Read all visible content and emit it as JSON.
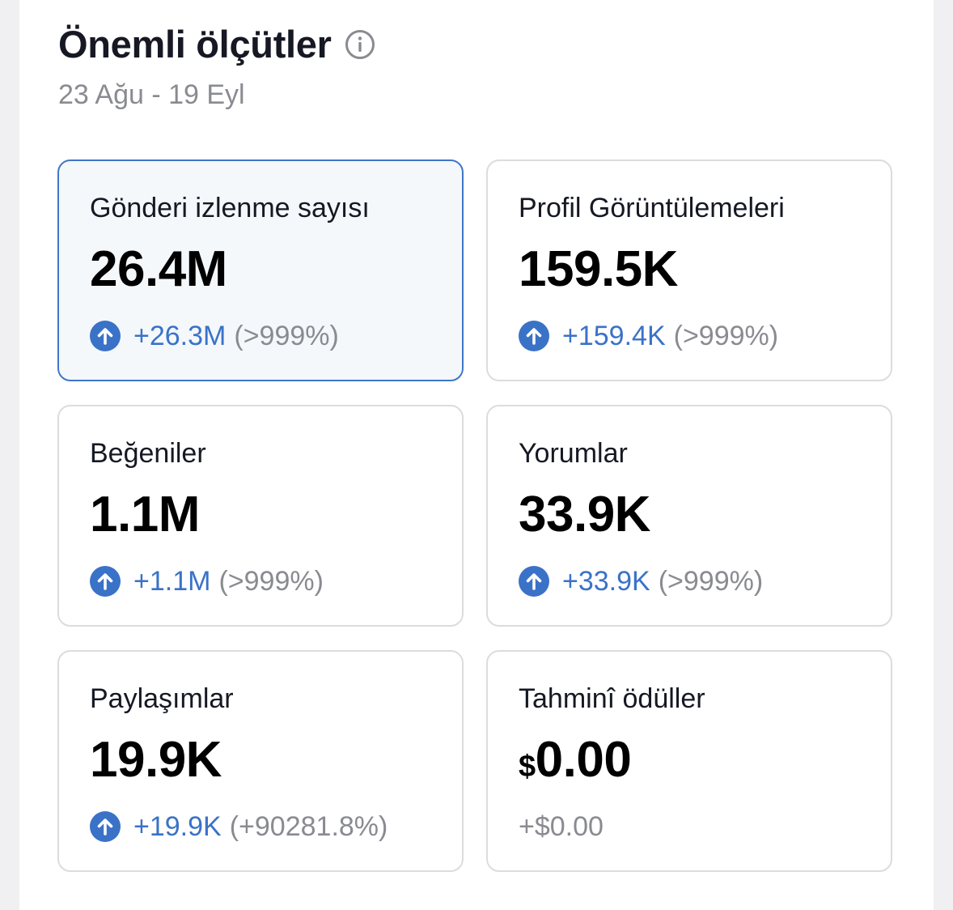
{
  "header": {
    "title": "Önemli ölçütler",
    "date_range": "23 Ağu - 19 Eyl"
  },
  "colors": {
    "accent_blue": "#3a72c8",
    "selected_border": "#3f76c8",
    "selected_bg": "#f4f8fb",
    "muted_gray": "#8a8b91"
  },
  "metrics": [
    {
      "label": "Gönderi izlenme sayısı",
      "value": "26.4M",
      "change": "+26.3M",
      "percent": "(>999%)",
      "icon": "arrow-up-circle-icon",
      "selected": true
    },
    {
      "label": "Profil Görüntülemeleri",
      "value": "159.5K",
      "change": "+159.4K",
      "percent": "(>999%)",
      "icon": "arrow-up-circle-icon",
      "selected": false
    },
    {
      "label": "Beğeniler",
      "value": "1.1M",
      "change": "+1.1M",
      "percent": "(>999%)",
      "icon": "arrow-up-circle-icon",
      "selected": false
    },
    {
      "label": "Yorumlar",
      "value": "33.9K",
      "change": "+33.9K",
      "percent": "(>999%)",
      "icon": "arrow-up-circle-icon",
      "selected": false
    },
    {
      "label": "Paylaşımlar",
      "value": "19.9K",
      "change": "+19.9K",
      "percent": "(+90281.8%)",
      "icon": "arrow-up-circle-icon",
      "selected": false
    },
    {
      "label": "Tahminî ödüller",
      "currency": "$",
      "value": "0.00",
      "change": "+$0.00",
      "selected": false
    }
  ]
}
